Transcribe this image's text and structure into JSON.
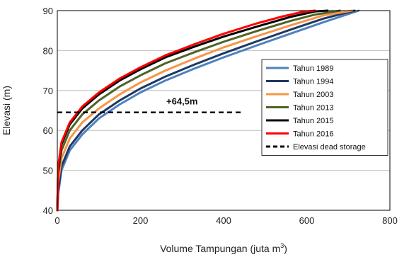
{
  "chart_data": {
    "type": "line",
    "title": "",
    "xlabel_main": "Volume Tampungan (juta m",
    "xlabel_sup": "3",
    "xlabel_end": ")",
    "ylabel": "Elevasi (m)",
    "xlim": [
      0,
      800
    ],
    "ylim": [
      40,
      90
    ],
    "x_ticks": [
      0,
      200,
      400,
      600,
      800
    ],
    "y_ticks": [
      40,
      50,
      60,
      70,
      80,
      90
    ],
    "grid": "horizontal",
    "legend_position": "right",
    "series": [
      {
        "name": "Tahun 1989",
        "color": "#4f81bd",
        "x": [
          0,
          2,
          10,
          30,
          60,
          100,
          150,
          200,
          260,
          330,
          400,
          480,
          560,
          640,
          725
        ],
        "y": [
          40,
          44,
          50,
          55,
          59,
          63,
          66.5,
          69.5,
          72.5,
          75.5,
          78.3,
          81.3,
          84.2,
          87.1,
          90
        ]
      },
      {
        "name": "Tahun 1994",
        "color": "#1f3864",
        "x": [
          0,
          2,
          10,
          30,
          60,
          100,
          150,
          200,
          260,
          330,
          400,
          480,
          560,
          640,
          715
        ],
        "y": [
          40,
          45,
          51,
          56,
          60,
          64,
          67.5,
          70.5,
          73.5,
          76.5,
          79.3,
          82.3,
          85.2,
          88,
          90
        ]
      },
      {
        "name": "Tahun 2003",
        "color": "#f79646",
        "x": [
          0,
          2,
          10,
          30,
          60,
          100,
          150,
          200,
          260,
          330,
          400,
          480,
          560,
          640,
          710
        ],
        "y": [
          40,
          47,
          53,
          58,
          62,
          65.5,
          69,
          72,
          75,
          78,
          80.8,
          83.6,
          86.3,
          88.8,
          90
        ]
      },
      {
        "name": "Tahun 2013",
        "color": "#4f6228",
        "x": [
          0,
          2,
          10,
          30,
          60,
          100,
          150,
          200,
          260,
          330,
          400,
          480,
          560,
          620,
          680
        ],
        "y": [
          40,
          49,
          55,
          60,
          64,
          67.5,
          71,
          73.8,
          76.8,
          79.6,
          82.2,
          84.9,
          87.4,
          89,
          90
        ]
      },
      {
        "name": "Tahun 2015",
        "color": "#000000",
        "x": [
          0,
          2,
          10,
          30,
          60,
          100,
          150,
          200,
          260,
          330,
          400,
          480,
          560,
          620,
          650
        ],
        "y": [
          40,
          50,
          56.5,
          61.5,
          65.5,
          69,
          72.5,
          75.3,
          78.3,
          81,
          83.5,
          86,
          88.4,
          89.8,
          90
        ]
      },
      {
        "name": "Tahun 2016",
        "color": "#ff0000",
        "x": [
          0,
          2,
          10,
          30,
          60,
          100,
          150,
          200,
          260,
          330,
          400,
          480,
          540,
          590,
          620
        ],
        "y": [
          40,
          51,
          57,
          62,
          66,
          69.5,
          73,
          75.8,
          78.8,
          81.6,
          84.2,
          86.8,
          88.5,
          89.7,
          90
        ]
      },
      {
        "name": "Elevasi dead storage",
        "color": "#000000",
        "dashed": true,
        "x": [
          0,
          445
        ],
        "y": [
          64.5,
          64.5
        ]
      }
    ],
    "annotations": [
      {
        "text": "+64,5m",
        "x": 300,
        "y": 66.5
      }
    ]
  }
}
